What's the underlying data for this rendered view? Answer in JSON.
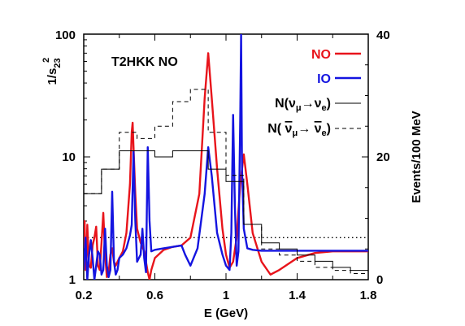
{
  "chart_data": {
    "type": "line",
    "title": "T2HKK NO",
    "xlabel": "E (GeV)",
    "ylabel_left": "1/s",
    "ylabel_left_sub": "23",
    "ylabel_left_sup": "2",
    "ylabel_right": "Events/100 MeV",
    "xlim": [
      0.2,
      1.8
    ],
    "ylim_left": [
      1,
      100
    ],
    "y_left_scale": "log",
    "ylim_right": [
      0,
      40
    ],
    "xticks": [
      "0.2",
      "0.6",
      "1",
      "1.4",
      "1.8"
    ],
    "yticks_left": [
      "1",
      "10",
      "100"
    ],
    "yticks_right": [
      "0",
      "20",
      "40"
    ],
    "legend_placement": "top-right",
    "legend": [
      {
        "label": "NO",
        "color": "#e8141b",
        "style": "solid"
      },
      {
        "label": "IO",
        "color": "#1414e0",
        "style": "solid"
      },
      {
        "label": "N(ν_μ→ν_e)",
        "color": "#000000",
        "style": "solid"
      },
      {
        "label": "N(ν̄_μ→ν̄_e)",
        "color": "#000000",
        "style": "dashed"
      }
    ],
    "reference_line_left_axis": 2.2,
    "series": [
      {
        "name": "NO",
        "axis": "left",
        "color": "#e8141b",
        "x": [
          0.2,
          0.205,
          0.21,
          0.215,
          0.22,
          0.23,
          0.24,
          0.25,
          0.26,
          0.27,
          0.28,
          0.29,
          0.3,
          0.31,
          0.32,
          0.33,
          0.34,
          0.35,
          0.36,
          0.37,
          0.38,
          0.39,
          0.4,
          0.42,
          0.44,
          0.46,
          0.47,
          0.475,
          0.48,
          0.49,
          0.5,
          0.52,
          0.54,
          0.56,
          0.57,
          0.58,
          0.6,
          0.65,
          0.7,
          0.75,
          0.8,
          0.85,
          0.88,
          0.9,
          0.92,
          0.95,
          0.98,
          1.0,
          1.02,
          1.04,
          1.06,
          1.08,
          1.1,
          1.12,
          1.15,
          1.2,
          1.25,
          1.3,
          1.4,
          1.5,
          1.6,
          1.8
        ],
        "y": [
          1.8,
          3.0,
          1.2,
          1.3,
          2.8,
          1.3,
          1.25,
          1.9,
          2.2,
          2.7,
          1.3,
          1.2,
          2.0,
          3.5,
          1.6,
          1.05,
          1.15,
          1.6,
          1.8,
          1.4,
          1.3,
          1.4,
          1.5,
          1.7,
          2.4,
          6.0,
          16.0,
          19.0,
          12.0,
          5.0,
          2.6,
          2.0,
          1.7,
          1.15,
          1.0,
          1.2,
          1.5,
          1.75,
          1.85,
          1.9,
          2.2,
          5.0,
          30.0,
          70.0,
          30.0,
          8.0,
          2.6,
          1.6,
          1.25,
          1.4,
          2.2,
          6.0,
          10.5,
          6.0,
          2.4,
          1.4,
          1.1,
          1.2,
          1.5,
          1.65,
          1.7,
          1.7
        ]
      },
      {
        "name": "IO",
        "axis": "left",
        "color": "#1414e0",
        "x": [
          0.2,
          0.21,
          0.22,
          0.23,
          0.24,
          0.25,
          0.26,
          0.27,
          0.28,
          0.29,
          0.3,
          0.31,
          0.32,
          0.33,
          0.34,
          0.35,
          0.36,
          0.37,
          0.38,
          0.39,
          0.4,
          0.42,
          0.44,
          0.46,
          0.47,
          0.48,
          0.49,
          0.5,
          0.52,
          0.53,
          0.54,
          0.55,
          0.56,
          0.57,
          0.58,
          0.6,
          0.65,
          0.7,
          0.75,
          0.77,
          0.8,
          0.84,
          0.88,
          0.9,
          0.92,
          0.95,
          0.98,
          1.0,
          1.02,
          1.03,
          1.04,
          1.05,
          1.06,
          1.07,
          1.08,
          1.085,
          1.09,
          1.1,
          1.12,
          1.15,
          1.2,
          1.4,
          1.6,
          1.8
        ],
        "y": [
          1.2,
          2.2,
          1.0,
          1.6,
          2.1,
          1.5,
          1.0,
          1.3,
          1.7,
          1.6,
          1.1,
          1.2,
          2.6,
          1.3,
          1.05,
          1.2,
          5.2,
          1.4,
          1.1,
          1.2,
          1.5,
          1.6,
          1.8,
          2.3,
          2.8,
          11.0,
          3.0,
          1.4,
          1.6,
          2.6,
          1.5,
          1.15,
          12.0,
          3.0,
          1.7,
          1.75,
          1.8,
          1.85,
          1.9,
          1.6,
          1.3,
          1.8,
          5.0,
          12.0,
          7.0,
          2.4,
          1.6,
          1.3,
          1.2,
          2.4,
          22.0,
          4.0,
          1.3,
          1.7,
          20.0,
          100.0,
          8.0,
          2.6,
          1.8,
          1.75,
          1.72,
          1.72,
          1.72,
          1.72
        ]
      },
      {
        "name": "N(ν_μ→ν_e)",
        "axis": "right",
        "color": "#000000",
        "style": "step",
        "bins": [
          0.2,
          0.3,
          0.4,
          0.5,
          0.6,
          0.7,
          0.8,
          0.9,
          1.0,
          1.1,
          1.2,
          1.3,
          1.4,
          1.5,
          1.6,
          1.7,
          1.8
        ],
        "values": [
          14,
          18,
          21,
          21,
          20,
          21,
          21,
          18,
          16,
          9,
          6,
          5,
          4,
          3,
          2,
          1.5,
          1
        ]
      },
      {
        "name": "N(ν̄_μ→ν̄_e)",
        "axis": "right",
        "color": "#000000",
        "style": "dashed-step",
        "bins": [
          0.2,
          0.3,
          0.4,
          0.5,
          0.6,
          0.7,
          0.8,
          0.9,
          1.0,
          1.1,
          1.2,
          1.3,
          1.4,
          1.5,
          1.6,
          1.7,
          1.8
        ],
        "values": [
          14,
          18,
          24,
          23,
          25,
          29,
          31,
          24,
          17,
          9,
          5,
          4,
          3,
          2,
          1.5,
          1,
          0.5
        ]
      }
    ]
  }
}
